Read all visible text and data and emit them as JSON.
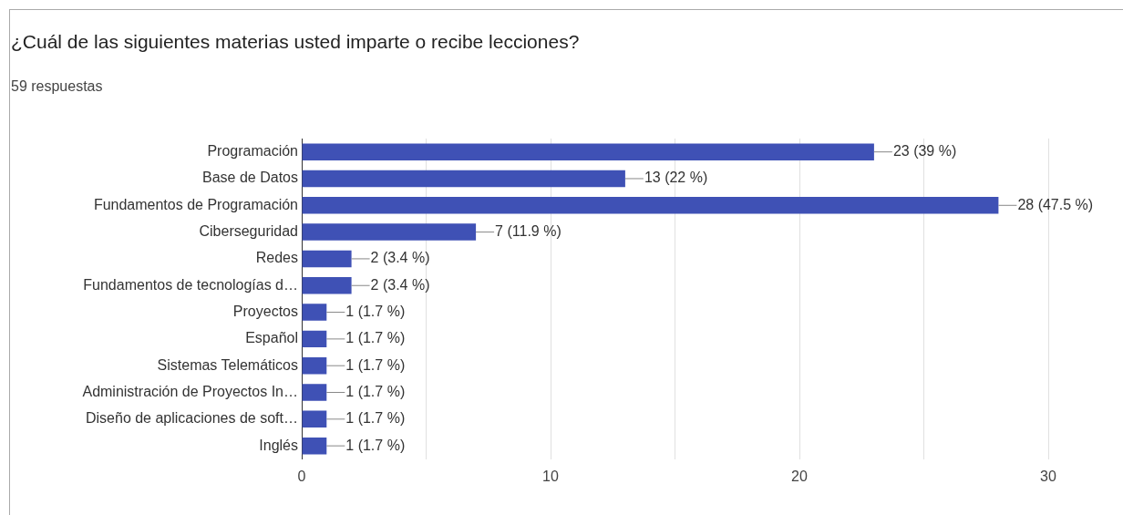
{
  "chart_data": {
    "type": "bar",
    "orientation": "horizontal",
    "title": "¿Cuál de las siguientes materias usted imparte o recibe lecciones?",
    "subtitle": "59 respuestas",
    "categories": [
      "Programación",
      "Base de Datos",
      "Fundamentos de Programación",
      "Ciberseguridad",
      "Redes",
      "Fundamentos de tecnologías d…",
      "Proyectos",
      "Español",
      "Sistemas Telemáticos",
      "Administración de Proyectos In…",
      "Diseño de aplicaciones de soft…",
      "Inglés"
    ],
    "values": [
      23,
      13,
      28,
      7,
      2,
      2,
      1,
      1,
      1,
      1,
      1,
      1
    ],
    "value_labels": [
      "23 (39 %)",
      "13 (22 %)",
      "28 (47.5 %)",
      "7 (11.9 %)",
      "2 (3.4 %)",
      "2 (3.4 %)",
      "1 (1.7 %)",
      "1 (1.7 %)",
      "1 (1.7 %)",
      "1 (1.7 %)",
      "1 (1.7 %)",
      "1 (1.7 %)"
    ],
    "color": "#3f51b5",
    "xlim": [
      0,
      30
    ],
    "xticks": [
      0,
      {
        "value": 5,
        "label": null
      },
      10,
      {
        "value": 15,
        "label": null
      },
      20,
      {
        "value": 25,
        "label": null
      },
      30
    ],
    "grid": "x",
    "legend": false
  }
}
